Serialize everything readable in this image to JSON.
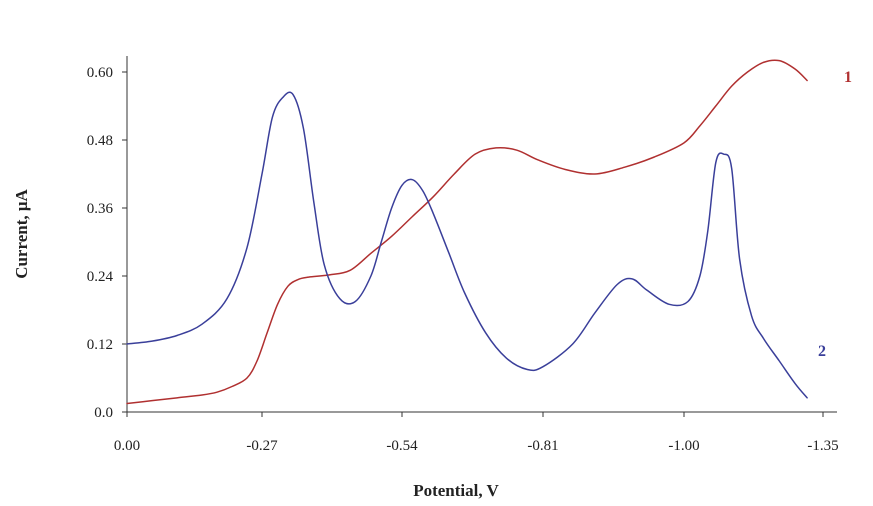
{
  "chart_data": {
    "type": "line",
    "title": "",
    "xlabel": "Potential, V",
    "ylabel": "Current, μA",
    "x_ticks": [
      0.0,
      -0.27,
      -0.54,
      -0.81,
      -1.0,
      -1.35
    ],
    "x_tick_labels": [
      "0.00",
      "-0.27",
      "-0.54",
      "-0.81",
      "-1.00",
      "-1.35"
    ],
    "y_ticks": [
      0.0,
      0.12,
      0.24,
      0.36,
      0.48,
      0.6
    ],
    "y_tick_labels": [
      "0.0",
      "0.12",
      "0.24",
      "0.36",
      "0.48",
      "0.60"
    ],
    "ylim": [
      0.0,
      0.6
    ],
    "grid": false,
    "series": [
      {
        "name": "1",
        "color": "#b03030",
        "x": [
          0.0,
          -0.05,
          -0.1,
          -0.15,
          -0.18,
          -0.21,
          -0.24,
          -0.26,
          -0.28,
          -0.3,
          -0.32,
          -0.34,
          -0.36,
          -0.4,
          -0.44,
          -0.48,
          -0.52,
          -0.56,
          -0.6,
          -0.64,
          -0.68,
          -0.72,
          -0.76,
          -0.8,
          -0.84,
          -0.88,
          -0.92,
          -0.96,
          -1.0,
          -1.04,
          -1.08,
          -1.12,
          -1.16,
          -1.2,
          -1.24,
          -1.28,
          -1.31
        ],
        "y": [
          0.015,
          0.02,
          0.025,
          0.03,
          0.035,
          0.045,
          0.06,
          0.09,
          0.14,
          0.19,
          0.222,
          0.234,
          0.238,
          0.242,
          0.25,
          0.28,
          0.31,
          0.345,
          0.38,
          0.42,
          0.455,
          0.466,
          0.462,
          0.445,
          0.428,
          0.42,
          0.432,
          0.45,
          0.475,
          0.505,
          0.54,
          0.575,
          0.6,
          0.617,
          0.62,
          0.605,
          0.585
        ]
      },
      {
        "name": "2",
        "color": "#3a3f9a",
        "x": [
          0.0,
          -0.05,
          -0.1,
          -0.15,
          -0.2,
          -0.24,
          -0.27,
          -0.29,
          -0.31,
          -0.33,
          -0.35,
          -0.37,
          -0.39,
          -0.42,
          -0.45,
          -0.48,
          -0.5,
          -0.52,
          -0.54,
          -0.56,
          -0.58,
          -0.6,
          -0.63,
          -0.66,
          -0.7,
          -0.74,
          -0.78,
          -0.81,
          -0.85,
          -0.88,
          -0.91,
          -0.93,
          -0.95,
          -0.98,
          -1.01,
          -1.04,
          -1.06,
          -1.08,
          -1.1,
          -1.12,
          -1.14,
          -1.17,
          -1.2,
          -1.24,
          -1.28,
          -1.31
        ],
        "y": [
          0.12,
          0.125,
          0.135,
          0.155,
          0.2,
          0.29,
          0.42,
          0.52,
          0.555,
          0.56,
          0.5,
          0.37,
          0.26,
          0.2,
          0.195,
          0.24,
          0.3,
          0.36,
          0.4,
          0.41,
          0.39,
          0.35,
          0.28,
          0.21,
          0.14,
          0.095,
          0.075,
          0.08,
          0.12,
          0.175,
          0.225,
          0.235,
          0.215,
          0.19,
          0.195,
          0.24,
          0.32,
          0.44,
          0.455,
          0.43,
          0.27,
          0.17,
          0.13,
          0.09,
          0.05,
          0.025
        ]
      }
    ]
  }
}
